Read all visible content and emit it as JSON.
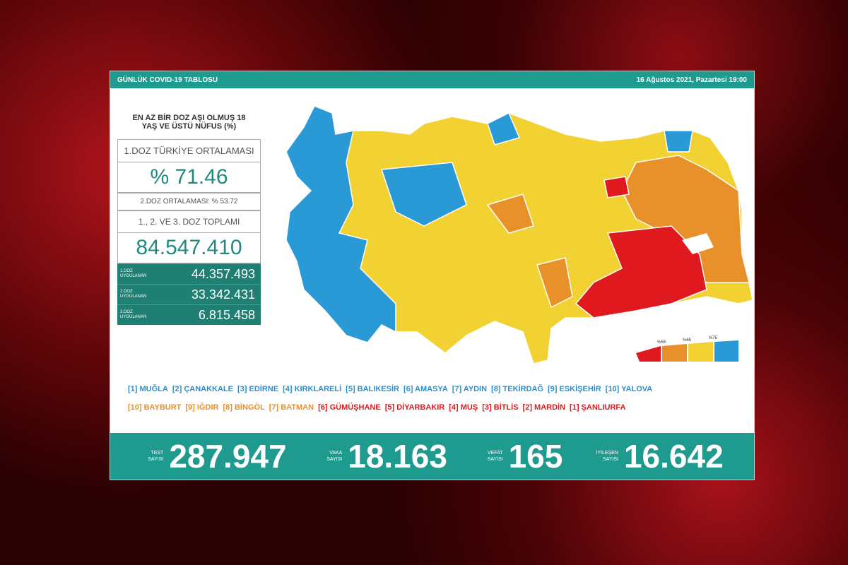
{
  "header": {
    "title": "GÜNLÜK COVID-19 TABLOSU",
    "date": "16 Ağustos 2021, Pazartesi 19:00"
  },
  "vaccine": {
    "heading": "EN AZ BİR DOZ AŞI OLMUŞ 18 YAŞ VE ÜSTÜ NÜFUS (%)",
    "first_dose_label": "1.DOZ TÜRKİYE ORTALAMASI",
    "first_dose_average": "% 71.46",
    "second_dose_average": "2.DOZ ORTALAMASI: % 53.72",
    "total_label": "1., 2. VE 3. DOZ TOPLAMI",
    "total": "84.547.410",
    "doses": [
      {
        "label": "1.DOZ UYGULANAN",
        "value": "44.357.493"
      },
      {
        "label": "2.DOZ UYGULANAN",
        "value": "33.342.431"
      },
      {
        "label": "3.DOZ UYGULANAN",
        "value": "6.815.458"
      }
    ]
  },
  "top_provinces": [
    {
      "name": "[1] MUĞLA",
      "color": "#2a8fcf"
    },
    {
      "name": "[2] ÇANAKKALE",
      "color": "#2a8fcf"
    },
    {
      "name": "[3] EDİRNE",
      "color": "#2a8fcf"
    },
    {
      "name": "[4] KIRKLARELİ",
      "color": "#2a8fcf"
    },
    {
      "name": "[5] BALIKESİR",
      "color": "#2a8fcf"
    },
    {
      "name": "[6] AMASYA",
      "color": "#2a8fcf"
    },
    {
      "name": "[7] AYDIN",
      "color": "#2a8fcf"
    },
    {
      "name": "[8] TEKİRDAĞ",
      "color": "#2a8fcf"
    },
    {
      "name": "[9] ESKİŞEHİR",
      "color": "#2a8fcf"
    },
    {
      "name": "[10] YALOVA",
      "color": "#2a8fcf"
    }
  ],
  "bottom_provinces": [
    {
      "name": "[10] BAYBURT",
      "color": "#e8902a"
    },
    {
      "name": "[9] IĞDIR",
      "color": "#e8902a"
    },
    {
      "name": "[8] BİNGÖL",
      "color": "#e8902a"
    },
    {
      "name": "[7] BATMAN",
      "color": "#e8902a"
    },
    {
      "name": "[6] GÜMÜŞHANE",
      "color": "#e0191e"
    },
    {
      "name": "[5] DİYARBAKIR",
      "color": "#e0191e"
    },
    {
      "name": "[4] MUŞ",
      "color": "#e0191e"
    },
    {
      "name": "[3] BİTLİS",
      "color": "#e0191e"
    },
    {
      "name": "[2] MARDİN",
      "color": "#e0191e"
    },
    {
      "name": "[1] ŞANLIURFA",
      "color": "#e0191e"
    }
  ],
  "map_legend": [
    "%55",
    "%65",
    "%75"
  ],
  "stats": [
    {
      "label": "TEST SAYISI",
      "value": "287.947"
    },
    {
      "label": "VAKA SAYISI",
      "value": "18.163"
    },
    {
      "label": "VEFAT SAYISI",
      "value": "165"
    },
    {
      "label": "İYİLEŞEN SAYISI",
      "value": "16.642"
    }
  ]
}
